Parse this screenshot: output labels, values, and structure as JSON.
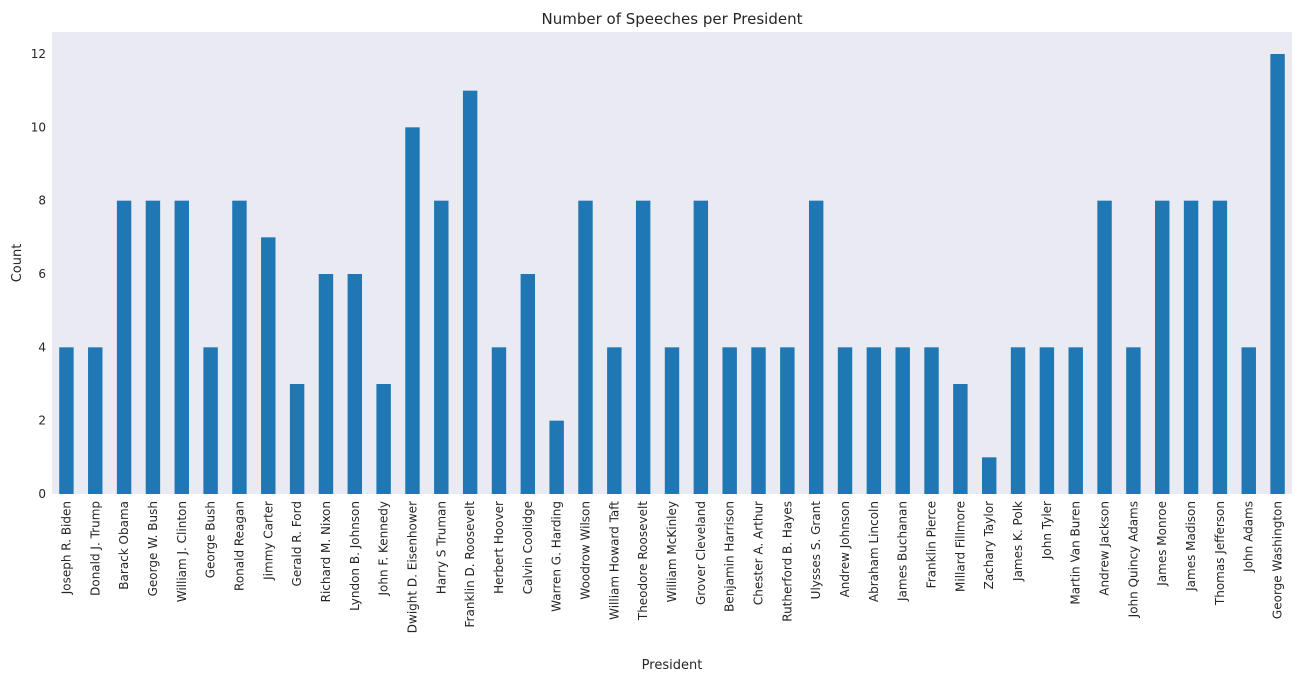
{
  "chart_data": {
    "type": "bar",
    "title": "Number of Speeches per President",
    "xlabel": "President",
    "ylabel": "Count",
    "ylim": [
      0,
      12.6
    ],
    "yticks": [
      0,
      2,
      4,
      6,
      8,
      10,
      12
    ],
    "grid": false,
    "bar_color": "#1f77b4",
    "background_color": "#eaeaf2",
    "categories": [
      "Joseph R. Biden",
      "Donald J. Trump",
      "Barack Obama",
      "George W. Bush",
      "William J. Clinton",
      "George Bush",
      "Ronald Reagan",
      "Jimmy Carter",
      "Gerald R. Ford",
      "Richard M. Nixon",
      "Lyndon B. Johnson",
      "John F. Kennedy",
      "Dwight D. Eisenhower",
      "Harry S Truman",
      "Franklin D. Roosevelt",
      "Herbert Hoover",
      "Calvin Coolidge",
      "Warren G. Harding",
      "Woodrow Wilson",
      "William Howard Taft",
      "Theodore Roosevelt",
      "William McKinley",
      "Grover Cleveland",
      "Benjamin Harrison",
      "Chester A. Arthur",
      "Rutherford B. Hayes",
      "Ulysses S. Grant",
      "Andrew Johnson",
      "Abraham Lincoln",
      "James Buchanan",
      "Franklin Pierce",
      "Millard Fillmore",
      "Zachary Taylor",
      "James K. Polk",
      "John Tyler",
      "Martin Van Buren",
      "Andrew Jackson",
      "John Quincy Adams",
      "James Monroe",
      "James Madison",
      "Thomas Jefferson",
      "John Adams",
      "George Washington"
    ],
    "values": [
      4,
      4,
      8,
      8,
      8,
      4,
      8,
      7,
      3,
      6,
      6,
      3,
      10,
      8,
      11,
      4,
      6,
      2,
      8,
      4,
      8,
      4,
      8,
      4,
      4,
      4,
      8,
      4,
      4,
      4,
      4,
      3,
      1,
      4,
      4,
      4,
      8,
      4,
      8,
      8,
      8,
      4,
      12
    ]
  }
}
